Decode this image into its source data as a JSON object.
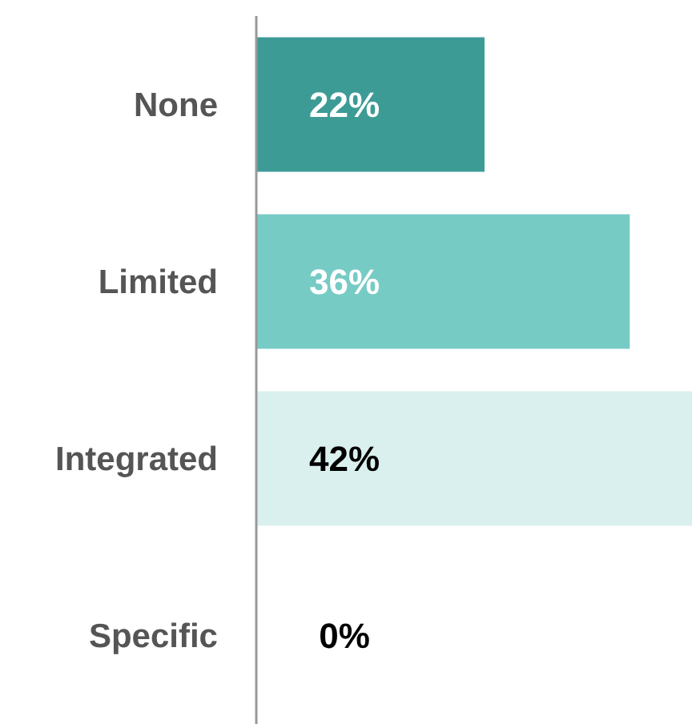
{
  "chart_data": {
    "type": "bar",
    "orientation": "horizontal",
    "categories": [
      "None",
      "Limited",
      "Integrated",
      "Specific"
    ],
    "values": [
      22,
      36,
      42,
      0
    ],
    "colors": [
      "#3d9b96",
      "#77cbc5",
      "#daf0ee",
      "#daf0ee"
    ],
    "value_labels": [
      "22%",
      "36%",
      "42%",
      "0%"
    ]
  }
}
